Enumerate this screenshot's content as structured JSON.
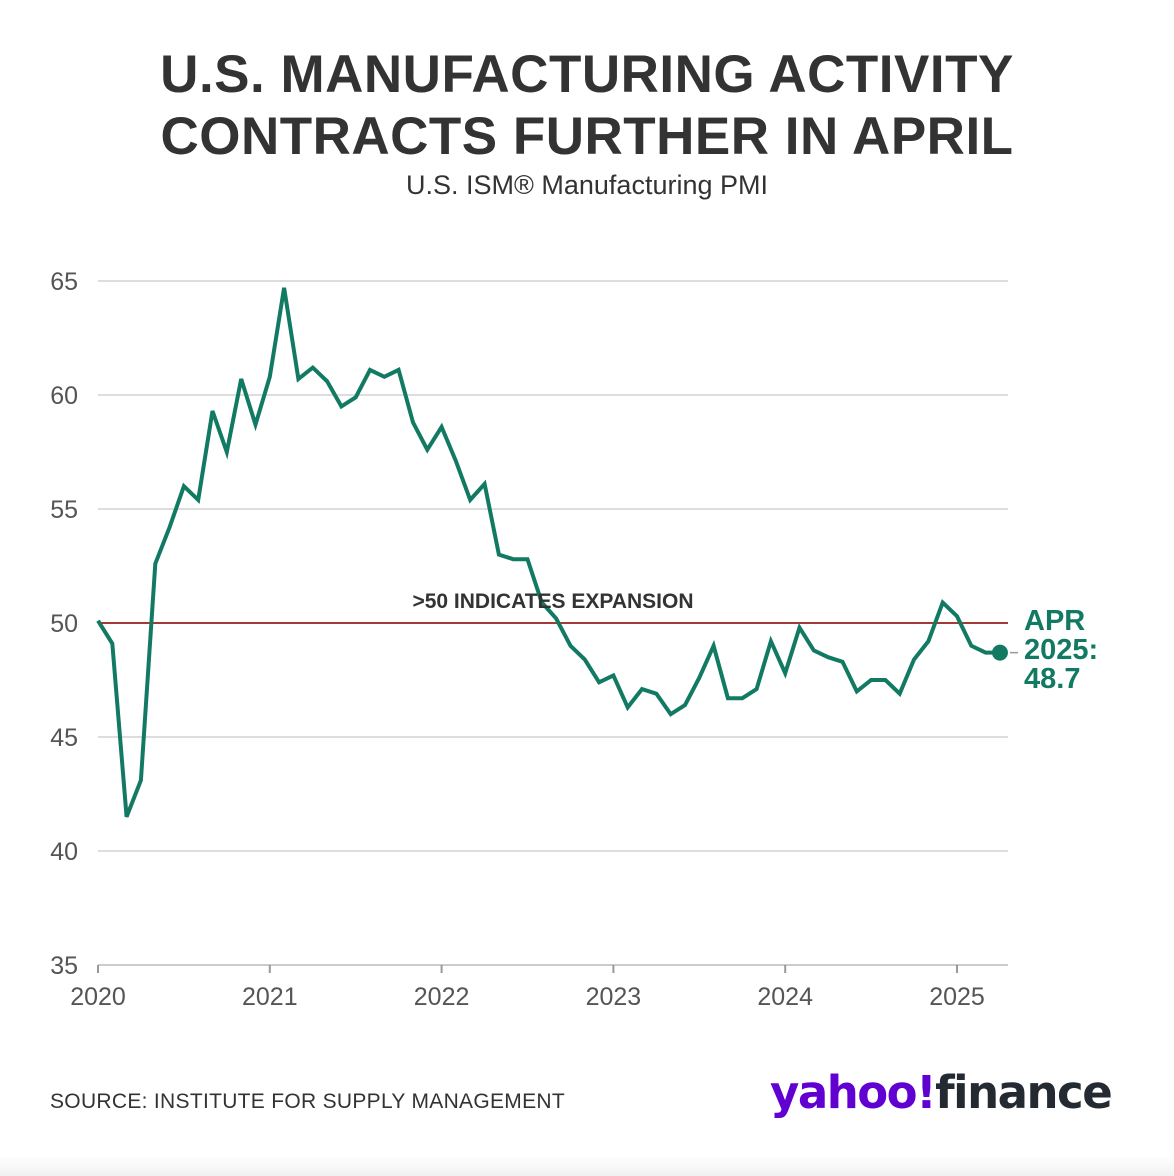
{
  "title_lines": [
    "U.S. MANUFACTURING ACTIVITY",
    "CONTRACTS FURTHER IN APRIL"
  ],
  "subtitle": "U.S. ISM® Manufacturing PMI",
  "source": "SOURCE: INSTITUTE FOR SUPPLY MANAGEMENT",
  "logo": {
    "part1": "yahoo!",
    "part2": "finance"
  },
  "colors": {
    "line": "#127a63",
    "threshold": "#a33a36",
    "grid": "#dddddd",
    "text": "#333333",
    "axis_text": "#555555"
  },
  "chart_data": {
    "type": "line",
    "ylim": [
      35,
      65
    ],
    "yticks": [
      35,
      40,
      45,
      50,
      55,
      60,
      65
    ],
    "xticks": [
      "2020",
      "2021",
      "2022",
      "2023",
      "2024",
      "2025"
    ],
    "grid": true,
    "threshold": {
      "value": 50,
      "label": ">50 INDICATES EXPANSION"
    },
    "annotation": {
      "lines": [
        "APR",
        "2025:",
        "48.7"
      ],
      "x": "2025-04",
      "y": 48.7
    },
    "series": [
      {
        "x": [
          "2020-01",
          "2020-02",
          "2020-03",
          "2020-04",
          "2020-05",
          "2020-06",
          "2020-07",
          "2020-08",
          "2020-09",
          "2020-10",
          "2020-11",
          "2020-12",
          "2021-01",
          "2021-02",
          "2021-03",
          "2021-04",
          "2021-05",
          "2021-06",
          "2021-07",
          "2021-08",
          "2021-09",
          "2021-10",
          "2021-11",
          "2021-12",
          "2022-01",
          "2022-02",
          "2022-03",
          "2022-04",
          "2022-05",
          "2022-06",
          "2022-07",
          "2022-08",
          "2022-09",
          "2022-10",
          "2022-11",
          "2022-12",
          "2023-01",
          "2023-02",
          "2023-03",
          "2023-04",
          "2023-05",
          "2023-06",
          "2023-07",
          "2023-08",
          "2023-09",
          "2023-10",
          "2023-11",
          "2023-12",
          "2024-01",
          "2024-02",
          "2024-03",
          "2024-04",
          "2024-05",
          "2024-06",
          "2024-07",
          "2024-08",
          "2024-09",
          "2024-10",
          "2024-11",
          "2024-12",
          "2025-01",
          "2025-02",
          "2025-03",
          "2025-04"
        ],
        "values": [
          50.1,
          49.1,
          41.5,
          43.1,
          52.6,
          54.2,
          56.0,
          55.4,
          59.3,
          57.5,
          60.7,
          58.7,
          60.8,
          64.7,
          60.7,
          61.2,
          60.6,
          59.5,
          59.9,
          61.1,
          60.8,
          61.1,
          58.8,
          57.6,
          58.6,
          57.1,
          55.4,
          56.1,
          53.0,
          52.8,
          52.8,
          50.9,
          50.2,
          49.0,
          48.4,
          47.4,
          47.7,
          46.3,
          47.1,
          46.9,
          46.0,
          46.4,
          47.6,
          49.0,
          46.7,
          46.7,
          47.1,
          49.2,
          47.8,
          49.8,
          48.8,
          48.5,
          48.3,
          47.0,
          47.5,
          47.5,
          46.9,
          48.4,
          49.2,
          50.9,
          50.3,
          49.0,
          48.7,
          48.7
        ]
      }
    ]
  }
}
